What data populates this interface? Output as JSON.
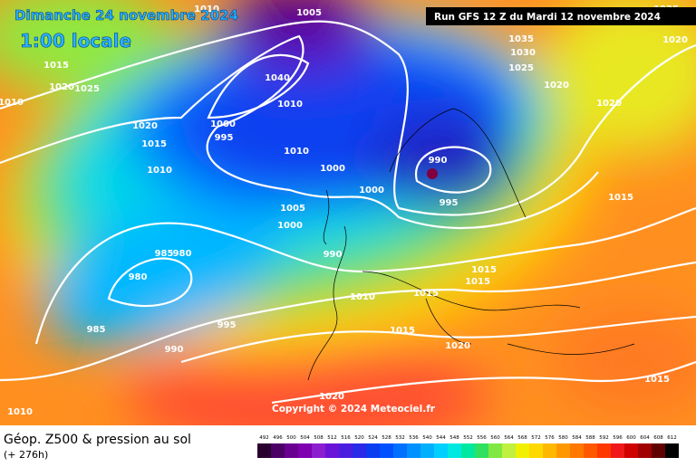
{
  "header": {
    "date": "Dimanche 24 novembre 2024",
    "time": "1:00 locale",
    "run": "Run GFS 12 Z du Mardi 12 novembre 2024"
  },
  "copyright": "Copyright © 2024 Meteociel.fr",
  "footer": {
    "title": "Géop. Z500 & pression au sol",
    "lead": "(+ 276h)"
  },
  "isobar_labels": [
    1010,
    1005,
    1035,
    1020,
    1015,
    1020,
    1025,
    1010,
    1035,
    1030,
    1025,
    1020,
    1020,
    1020,
    1015,
    1010,
    1010,
    1040,
    1000,
    995,
    1010,
    1000,
    990,
    1000,
    995,
    1005,
    1000,
    1015,
    985,
    980,
    980,
    990,
    1015,
    1015,
    1015,
    1010,
    995,
    985,
    1015,
    990,
    1020,
    1015,
    1020,
    1010
  ],
  "scale": {
    "values": [
      492,
      496,
      500,
      504,
      508,
      512,
      516,
      520,
      524,
      528,
      532,
      536,
      540,
      544,
      548,
      552,
      556,
      560,
      564,
      568,
      572,
      576,
      580,
      584,
      588,
      592,
      596,
      600,
      604,
      608,
      612
    ],
    "colors": [
      "#2a0030",
      "#4b0066",
      "#6a0090",
      "#7f00b0",
      "#8c1ed0",
      "#6a14d8",
      "#4a1ee0",
      "#2a2ae8",
      "#0a3cf0",
      "#0050ff",
      "#0070ff",
      "#0090ff",
      "#00b0ff",
      "#00d0ff",
      "#00e8e0",
      "#00e8a0",
      "#30e060",
      "#80e840",
      "#c0f040",
      "#f0f000",
      "#ffd800",
      "#ffb800",
      "#ff9800",
      "#ff7800",
      "#ff5800",
      "#ff3800",
      "#f01818",
      "#d00000",
      "#a00000",
      "#600000",
      "#000000"
    ]
  }
}
